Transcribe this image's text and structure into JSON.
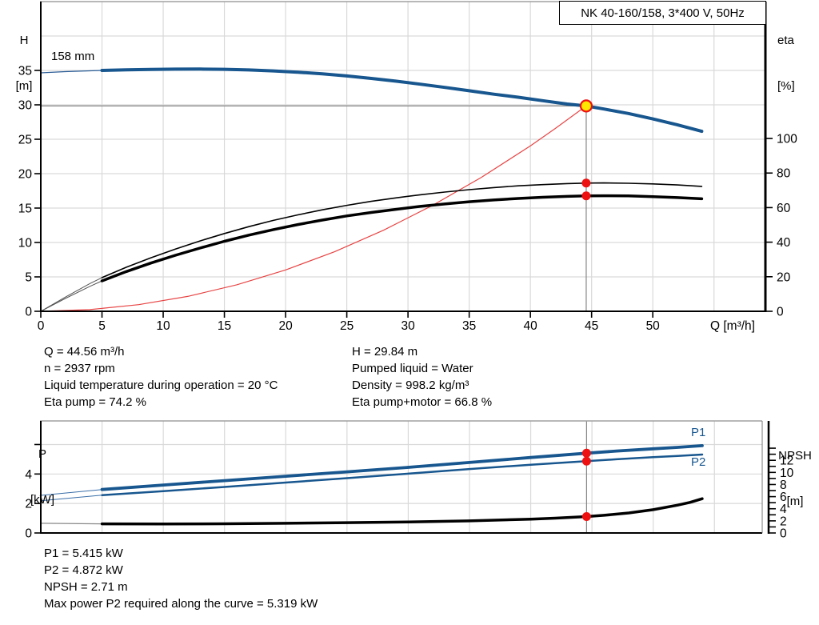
{
  "colors": {
    "curve_blue": "#17568e",
    "curve_black": "#000000",
    "system_red": "#e84545",
    "marker_red": "#ee1111",
    "marker_yellow": "#ffe600",
    "grid": "#d9d9d9",
    "ref_gray": "#858585",
    "frame_top": "#a0a0a0"
  },
  "axis_titles": {
    "top_left": [
      "H",
      "[m]"
    ],
    "top_right": [
      "eta",
      "[%]"
    ],
    "bottom_left": [
      "P",
      "[kW]"
    ],
    "bottom_right": [
      "NPSH",
      "[m]"
    ]
  },
  "curve_labels": {
    "impeller": "158 mm",
    "p1": "P1",
    "p2": "P2"
  },
  "annotations": {
    "mid_left": [
      "Q = 44.56 m³/h",
      "n = 2937 rpm",
      "Liquid temperature during operation = 20 °C",
      "Eta pump = 74.2 %"
    ],
    "mid_right": [
      "H = 29.84 m",
      "Pumped liquid = Water",
      "Density = 998.2 kg/m³",
      "Eta pump+motor = 66.8 %"
    ],
    "bottom": [
      "P1 = 5.415 kW",
      "P2 = 4.872 kW",
      "NPSH = 2.71 m",
      "Max power P2 required along the curve = 5.319 kW"
    ]
  },
  "chart_data": [
    {
      "type": "line",
      "id": "head",
      "title": "NK 40-160/158, 3*400 V, 50Hz",
      "x_axis": {
        "min": 0,
        "max": 59.2,
        "label": "Q [m³/h]",
        "show_tick_labels": true,
        "ticks": [
          0,
          5,
          10,
          15,
          20,
          25,
          30,
          35,
          40,
          45,
          50
        ],
        "grid": [
          5,
          10,
          15,
          20,
          25,
          30,
          35,
          40,
          45,
          50,
          55
        ]
      },
      "left_axis": {
        "min": 0,
        "max": 45,
        "ticks": [
          0,
          5,
          10,
          15,
          20,
          25,
          30,
          35
        ],
        "labeled": [
          0,
          5,
          10,
          15,
          20,
          25,
          30,
          35
        ],
        "grid": [
          5,
          10,
          15,
          20,
          25,
          30,
          35,
          40
        ]
      },
      "right_axis": {
        "min": 0,
        "max": 179.2,
        "ticks": [
          0,
          20,
          40,
          60,
          80,
          100
        ],
        "labeled": [
          0,
          20,
          40,
          60,
          80,
          100
        ]
      },
      "series": [
        {
          "name": "system-curve",
          "axis": "left",
          "color": "#e84545",
          "width": 1.2,
          "points": [
            [
              0,
              0
            ],
            [
              4,
              0.24
            ],
            [
              8,
              0.96
            ],
            [
              12,
              2.16
            ],
            [
              16,
              3.85
            ],
            [
              20,
              6.01
            ],
            [
              24,
              8.65
            ],
            [
              28,
              11.78
            ],
            [
              32,
              15.38
            ],
            [
              36,
              19.47
            ],
            [
              40,
              24.03
            ],
            [
              42,
              26.52
            ],
            [
              44.56,
              29.84
            ]
          ]
        },
        {
          "name": "eta-pump",
          "axis": "right",
          "color": "#000000",
          "width": 1.6,
          "thin_until": 5,
          "thin_width": 1,
          "thin_color": "#555555",
          "points": [
            [
              0,
              0
            ],
            [
              2,
              8.2
            ],
            [
              4,
              16
            ],
            [
              5,
              19.5
            ],
            [
              7,
              25.5
            ],
            [
              9,
              31
            ],
            [
              11,
              36
            ],
            [
              13,
              40.7
            ],
            [
              15,
              45
            ],
            [
              17,
              49
            ],
            [
              19,
              52.6
            ],
            [
              21,
              55.8
            ],
            [
              23,
              58.7
            ],
            [
              25,
              61.3
            ],
            [
              27,
              63.6
            ],
            [
              29,
              65.6
            ],
            [
              31,
              67.4
            ],
            [
              33,
              69
            ],
            [
              35,
              70.4
            ],
            [
              37,
              71.6
            ],
            [
              39,
              72.6
            ],
            [
              41,
              73.3
            ],
            [
              43,
              73.9
            ],
            [
              44.56,
              74.2
            ],
            [
              46,
              74.25
            ],
            [
              48,
              74.1
            ],
            [
              50,
              73.7
            ],
            [
              52,
              73.1
            ],
            [
              54,
              72.3
            ]
          ]
        },
        {
          "name": "eta-pump-motor",
          "axis": "right",
          "color": "#000000",
          "width": 3.5,
          "thin_until": 5,
          "thin_width": 1,
          "thin_color": "#555555",
          "points": [
            [
              0,
              0
            ],
            [
              2,
              7.4
            ],
            [
              4,
              14.4
            ],
            [
              5,
              17.6
            ],
            [
              7,
              23
            ],
            [
              9,
              27.9
            ],
            [
              11,
              32.4
            ],
            [
              13,
              36.6
            ],
            [
              15,
              40.5
            ],
            [
              17,
              44.1
            ],
            [
              19,
              47.3
            ],
            [
              21,
              50.2
            ],
            [
              23,
              52.8
            ],
            [
              25,
              55.2
            ],
            [
              27,
              57.2
            ],
            [
              29,
              59
            ],
            [
              31,
              60.7
            ],
            [
              33,
              62.1
            ],
            [
              35,
              63.4
            ],
            [
              37,
              64.4
            ],
            [
              39,
              65.3
            ],
            [
              41,
              66
            ],
            [
              43,
              66.5
            ],
            [
              44.56,
              66.8
            ],
            [
              46,
              66.85
            ],
            [
              48,
              66.75
            ],
            [
              50,
              66.35
            ],
            [
              52,
              65.8
            ],
            [
              54,
              65.1
            ]
          ]
        },
        {
          "name": "pump-head-158mm",
          "axis": "left",
          "color": "#17568e",
          "width": 4,
          "thin_until": 5,
          "thin_width": 1.2,
          "thin_color": "#2a5d96",
          "points": [
            [
              0,
              34.65
            ],
            [
              2,
              34.82
            ],
            [
              4,
              34.94
            ],
            [
              5,
              35.0
            ],
            [
              7,
              35.09
            ],
            [
              9,
              35.15
            ],
            [
              11,
              35.19
            ],
            [
              13,
              35.2
            ],
            [
              15,
              35.16
            ],
            [
              17,
              35.07
            ],
            [
              19,
              34.93
            ],
            [
              21,
              34.74
            ],
            [
              23,
              34.5
            ],
            [
              25,
              34.2
            ],
            [
              27,
              33.84
            ],
            [
              29,
              33.44
            ],
            [
              31,
              33.0
            ],
            [
              33,
              32.54
            ],
            [
              35,
              32.05
            ],
            [
              37,
              31.55
            ],
            [
              39,
              31.1
            ],
            [
              41,
              30.6
            ],
            [
              43,
              30.12
            ],
            [
              44.56,
              29.84
            ],
            [
              46,
              29.4
            ],
            [
              48,
              28.75
            ],
            [
              50,
              27.95
            ],
            [
              52,
              27.1
            ],
            [
              54,
              26.15
            ]
          ]
        }
      ],
      "op_lines": [
        {
          "dir": "h",
          "axis": "left",
          "v": 29.84,
          "x1": 0,
          "x2": 44.56
        },
        {
          "dir": "v",
          "axis": "left",
          "x": 44.56,
          "v1": 0,
          "v2": 29.84
        }
      ],
      "markers": [
        {
          "name": "duty-point",
          "style": "duty",
          "axis": "left",
          "x": 44.56,
          "v": 29.84
        },
        {
          "name": "eta-pump-point",
          "style": "dot",
          "axis": "right",
          "x": 44.56,
          "v": 74.2
        },
        {
          "name": "eta-total-point",
          "style": "dot",
          "axis": "right",
          "x": 44.56,
          "v": 66.8
        }
      ]
    },
    {
      "type": "line",
      "id": "power",
      "x_axis": {
        "min": 0,
        "max": 58.9,
        "label": "",
        "show_tick_labels": false,
        "ticks": [],
        "grid": [
          5,
          10,
          15,
          20,
          25,
          30,
          35,
          40,
          45,
          50,
          55
        ]
      },
      "left_axis": {
        "min": 0,
        "max": 7.6,
        "ticks": [
          0,
          2,
          4,
          6
        ],
        "labeled": [
          0,
          2,
          4
        ],
        "grid": [
          2,
          4,
          6
        ]
      },
      "right_axis": {
        "min": 0,
        "max": 18.5,
        "ticks": [
          0,
          1,
          2,
          3,
          4,
          5,
          6,
          7,
          8,
          9,
          10,
          11,
          12,
          13,
          14
        ],
        "labeled": [
          0,
          2,
          4,
          6,
          8,
          10,
          12
        ]
      },
      "series": [
        {
          "name": "npsh",
          "axis": "right",
          "color": "#000000",
          "width": 3.5,
          "thin_until": 5,
          "thin_width": 1.2,
          "thin_color": "#888888",
          "points": [
            [
              0,
              1.6
            ],
            [
              5,
              1.5
            ],
            [
              10,
              1.48
            ],
            [
              15,
              1.52
            ],
            [
              20,
              1.6
            ],
            [
              25,
              1.7
            ],
            [
              30,
              1.83
            ],
            [
              35,
              2.0
            ],
            [
              40,
              2.28
            ],
            [
              42,
              2.45
            ],
            [
              44.56,
              2.71
            ],
            [
              46,
              2.92
            ],
            [
              48,
              3.3
            ],
            [
              50,
              3.85
            ],
            [
              52,
              4.6
            ],
            [
              53,
              5.05
            ],
            [
              54,
              5.65
            ]
          ]
        },
        {
          "name": "p2",
          "axis": "left",
          "color": "#17568e",
          "width": 2.5,
          "thin_until": 5,
          "thin_width": 1,
          "thin_color": "#3a6ea8",
          "points": [
            [
              0,
              2.18
            ],
            [
              5,
              2.56
            ],
            [
              10,
              2.84
            ],
            [
              15,
              3.12
            ],
            [
              20,
              3.42
            ],
            [
              25,
              3.72
            ],
            [
              30,
              4.02
            ],
            [
              35,
              4.34
            ],
            [
              40,
              4.63
            ],
            [
              44.56,
              4.872
            ],
            [
              47,
              5.0
            ],
            [
              50,
              5.14
            ],
            [
              52,
              5.23
            ],
            [
              54,
              5.319
            ]
          ]
        },
        {
          "name": "p1",
          "axis": "left",
          "color": "#17568e",
          "width": 3.8,
          "thin_until": 5,
          "thin_width": 1,
          "thin_color": "#3a6ea8",
          "points": [
            [
              0,
              2.55
            ],
            [
              5,
              2.95
            ],
            [
              10,
              3.25
            ],
            [
              15,
              3.55
            ],
            [
              20,
              3.85
            ],
            [
              25,
              4.15
            ],
            [
              30,
              4.45
            ],
            [
              35,
              4.78
            ],
            [
              40,
              5.12
            ],
            [
              44.56,
              5.415
            ],
            [
              47,
              5.56
            ],
            [
              50,
              5.71
            ],
            [
              52,
              5.81
            ],
            [
              54,
              5.92
            ]
          ]
        }
      ],
      "op_lines": [
        {
          "dir": "v",
          "axis": "left",
          "x": 44.56,
          "v1": 0,
          "v2": 7.6
        }
      ],
      "markers": [
        {
          "name": "p1-point",
          "style": "dot",
          "axis": "left",
          "x": 44.56,
          "v": 5.415
        },
        {
          "name": "p2-point",
          "style": "dot",
          "axis": "left",
          "x": 44.56,
          "v": 4.872
        },
        {
          "name": "npsh-point",
          "style": "dot",
          "axis": "right",
          "x": 44.56,
          "v": 2.71
        }
      ]
    }
  ]
}
